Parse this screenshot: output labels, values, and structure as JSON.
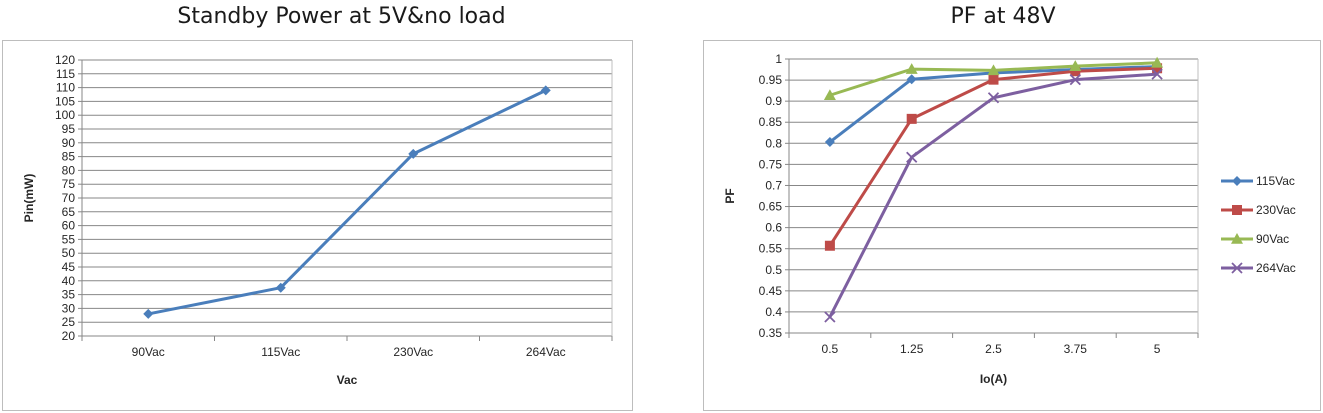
{
  "chart_data": [
    {
      "type": "line",
      "title": "Standby Power at 5V&no load",
      "xlabel": "Vac",
      "ylabel": "Pin(mW)",
      "categories": [
        "90Vac",
        "115Vac",
        "230Vac",
        "264Vac"
      ],
      "ylim": [
        20,
        120
      ],
      "ytick_step": 5,
      "grid": true,
      "series": [
        {
          "values": [
            28,
            37.5,
            86,
            109
          ],
          "color": "#4a7ebb",
          "marker": "diamond"
        }
      ]
    },
    {
      "type": "line",
      "title": "PF at 48V",
      "xlabel": "Io(A)",
      "ylabel": "PF",
      "categories": [
        "0.5",
        "1.25",
        "2.5",
        "3.75",
        "5"
      ],
      "ylim": [
        0.35,
        1
      ],
      "ytick_step": 0.05,
      "grid": true,
      "legend": "right",
      "series": [
        {
          "name": "115Vac",
          "values": [
            0.803,
            0.952,
            0.967,
            0.975,
            0.982
          ],
          "color": "#4a7ebb",
          "marker": "diamond"
        },
        {
          "name": "230Vac",
          "values": [
            0.557,
            0.858,
            0.951,
            0.971,
            0.978
          ],
          "color": "#be4b48",
          "marker": "square"
        },
        {
          "name": "90Vac",
          "values": [
            0.914,
            0.976,
            0.973,
            0.983,
            0.991
          ],
          "color": "#98b954",
          "marker": "triangle"
        },
        {
          "name": "264Vac",
          "values": [
            0.388,
            0.767,
            0.908,
            0.951,
            0.964
          ],
          "color": "#7d5fa0",
          "marker": "x"
        }
      ]
    }
  ]
}
